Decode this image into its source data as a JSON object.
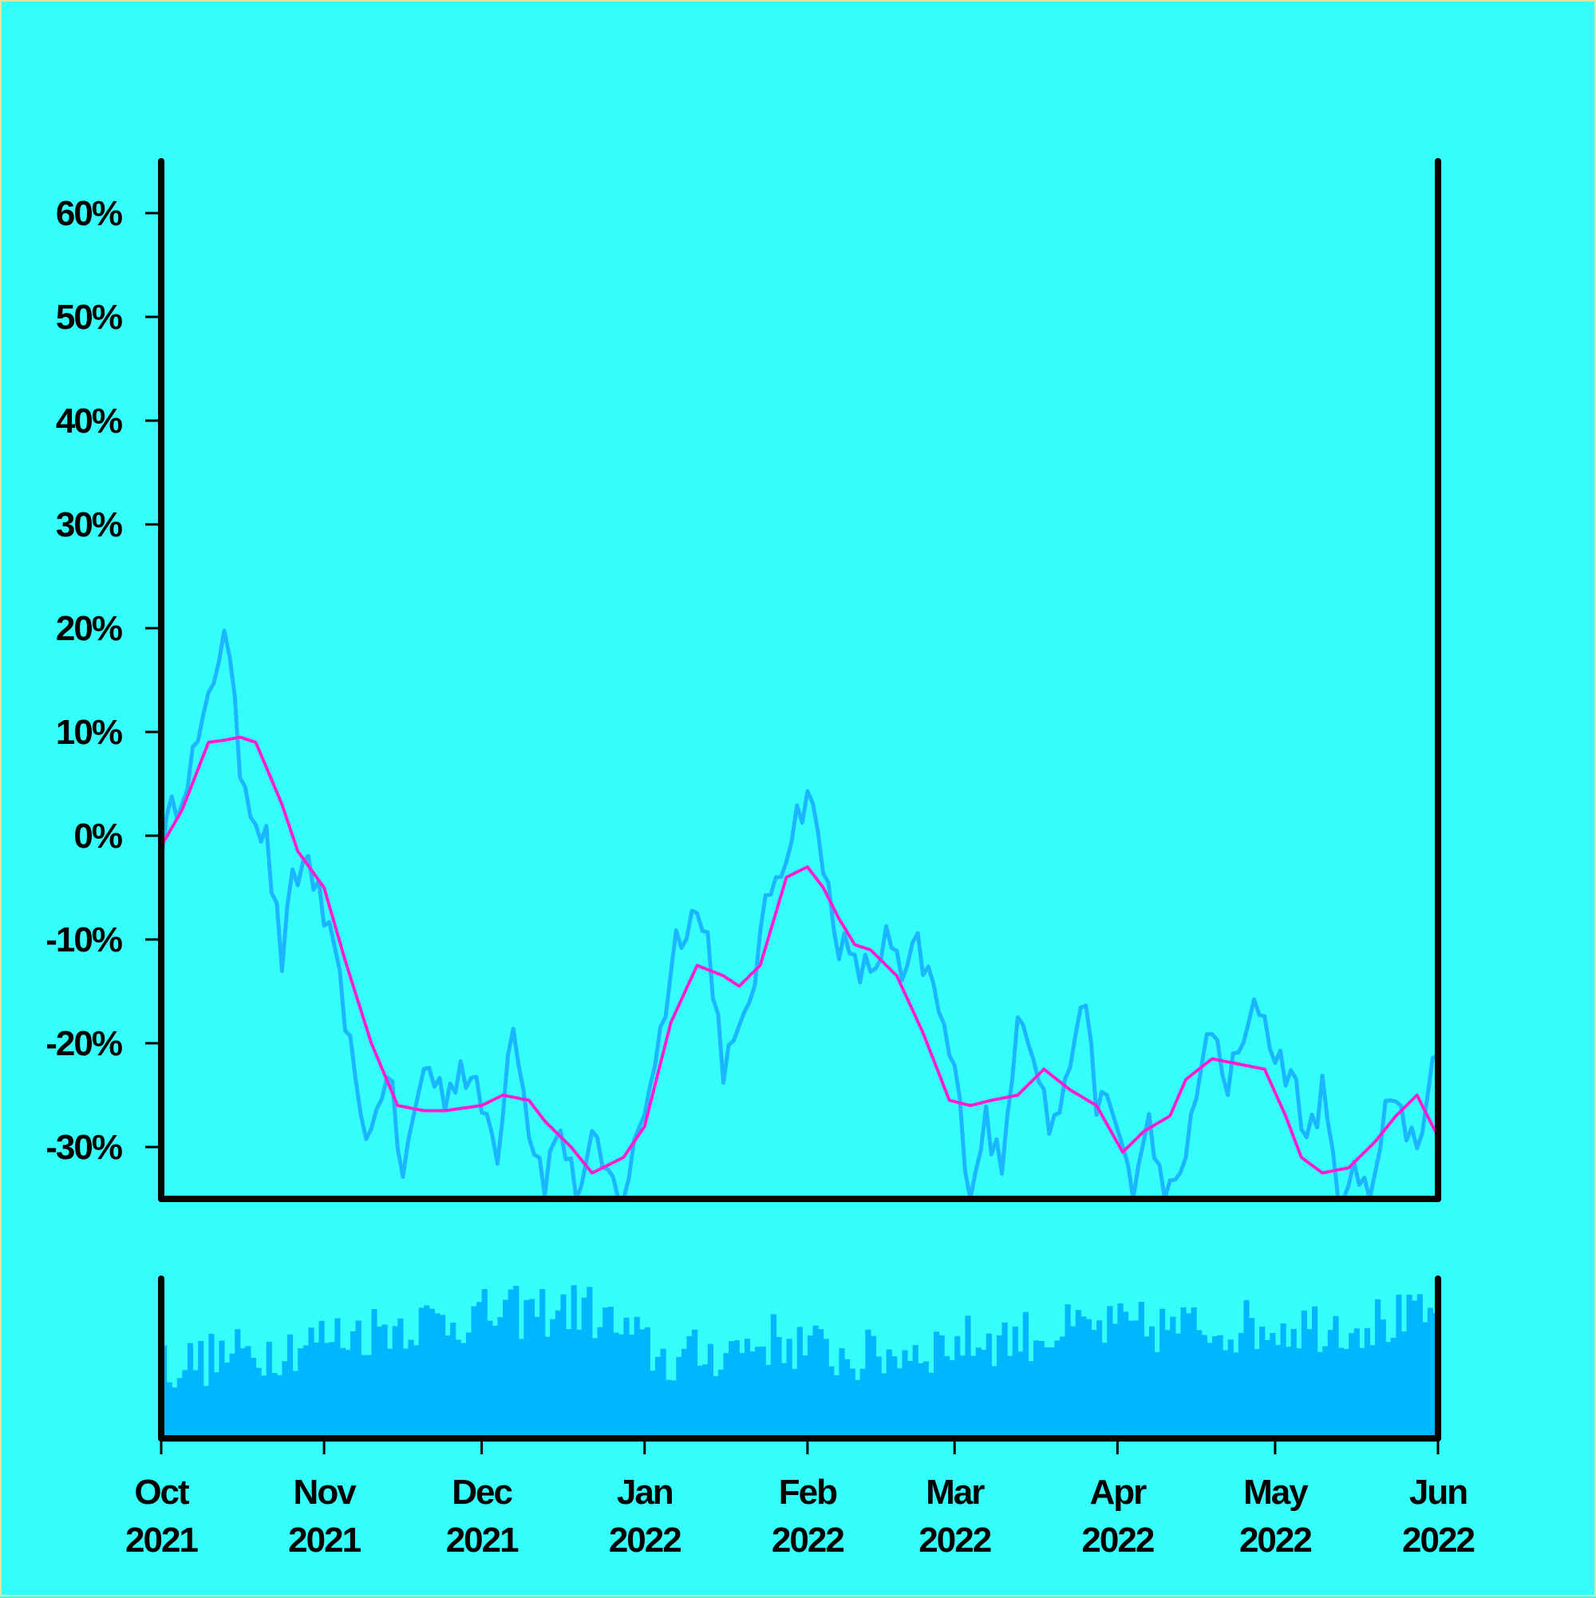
{
  "colors": {
    "background": "#35fffb",
    "price_line": "#1ab6ff",
    "moving_average": "#ff1fd0",
    "volume_bars": "#00b6ff",
    "axes": "#000000"
  },
  "chart_data": [
    {
      "type": "line",
      "title": "",
      "xlabel": "",
      "ylabel": "",
      "x_range": [
        "2021-10-01",
        "2022-06-01"
      ],
      "ylim": [
        -35,
        65
      ],
      "y_unit": "%",
      "y_ticks": [
        -30,
        -20,
        -10,
        0,
        10,
        20,
        30,
        40,
        50,
        60
      ],
      "y_tick_labels": [
        "-30%",
        "-20%",
        "-10%",
        "0%",
        "10%",
        "20%",
        "30%",
        "40%",
        "50%",
        "60%"
      ],
      "grid": false,
      "legend": "none",
      "series": [
        {
          "role": "daily",
          "color": "#1ab6ff",
          "x": [
            "2021-10-01",
            "2021-10-05",
            "2021-10-09",
            "2021-10-13",
            "2021-10-16",
            "2021-10-19",
            "2021-10-21",
            "2021-10-24",
            "2021-10-26",
            "2021-10-29",
            "2021-11-01",
            "2021-11-05",
            "2021-11-07",
            "2021-11-10",
            "2021-11-13",
            "2021-11-16",
            "2021-11-20",
            "2021-11-24",
            "2021-11-27",
            "2021-12-01",
            "2021-12-04",
            "2021-12-07",
            "2021-12-10",
            "2021-12-13",
            "2021-12-16",
            "2021-12-19",
            "2021-12-22",
            "2021-12-25",
            "2021-12-28",
            "2022-01-01",
            "2022-01-04",
            "2022-01-07",
            "2022-01-10",
            "2022-01-13",
            "2022-01-16",
            "2022-01-19",
            "2022-01-22",
            "2022-01-25",
            "2022-01-28",
            "2022-02-01",
            "2022-02-04",
            "2022-02-07",
            "2022-02-10",
            "2022-02-13",
            "2022-02-16",
            "2022-02-19",
            "2022-02-22",
            "2022-02-25",
            "2022-03-01",
            "2022-03-04",
            "2022-03-07",
            "2022-03-10",
            "2022-03-13",
            "2022-03-16",
            "2022-03-19",
            "2022-03-22",
            "2022-03-25",
            "2022-03-28",
            "2022-04-01",
            "2022-04-04",
            "2022-04-07",
            "2022-04-10",
            "2022-04-13",
            "2022-04-16",
            "2022-04-19",
            "2022-04-22",
            "2022-04-25",
            "2022-04-28",
            "2022-05-01",
            "2022-05-04",
            "2022-05-07",
            "2022-05-10",
            "2022-05-13",
            "2022-05-16",
            "2022-05-19",
            "2022-05-22",
            "2022-05-25",
            "2022-05-28",
            "2022-06-01"
          ],
          "values": [
            -1,
            5,
            10,
            20.7,
            7,
            2,
            -0.5,
            -12,
            -5,
            -2,
            -8,
            -17,
            -25,
            -29,
            -22,
            -33,
            -22,
            -25,
            -22,
            -26,
            -30,
            -17,
            -28,
            -33,
            -28,
            -35,
            -30,
            -33,
            -35,
            -26,
            -19,
            -10,
            -7,
            -10,
            -22,
            -20,
            -13,
            -5,
            -1,
            4.5,
            -3,
            -10,
            -13,
            -13,
            -10,
            -14,
            -11,
            -15,
            -23,
            -34,
            -27,
            -33,
            -16,
            -20,
            -28,
            -25,
            -15,
            -25,
            -28,
            -34,
            -28,
            -35,
            -34,
            -24,
            -19,
            -24,
            -20,
            -16,
            -21,
            -23,
            -29,
            -25,
            -35,
            -33,
            -35,
            -25,
            -27,
            -30,
            -19.5
          ]
        },
        {
          "role": "moving-average",
          "color": "#ff1fd0",
          "x": [
            "2021-10-01",
            "2021-10-05",
            "2021-10-10",
            "2021-10-13",
            "2021-10-16",
            "2021-10-19",
            "2021-10-24",
            "2021-10-27",
            "2021-11-01",
            "2021-11-05",
            "2021-11-10",
            "2021-11-15",
            "2021-11-20",
            "2021-11-24",
            "2021-12-01",
            "2021-12-05",
            "2021-12-10",
            "2021-12-13",
            "2021-12-18",
            "2021-12-22",
            "2021-12-28",
            "2022-01-01",
            "2022-01-06",
            "2022-01-11",
            "2022-01-16",
            "2022-01-19",
            "2022-01-23",
            "2022-01-28",
            "2022-02-01",
            "2022-02-04",
            "2022-02-07",
            "2022-02-10",
            "2022-02-13",
            "2022-02-18",
            "2022-02-23",
            "2022-02-28",
            "2022-03-04",
            "2022-03-08",
            "2022-03-13",
            "2022-03-18",
            "2022-03-23",
            "2022-03-28",
            "2022-04-02",
            "2022-04-06",
            "2022-04-11",
            "2022-04-14",
            "2022-04-19",
            "2022-04-24",
            "2022-04-29",
            "2022-05-03",
            "2022-05-06",
            "2022-05-10",
            "2022-05-15",
            "2022-05-20",
            "2022-05-24",
            "2022-05-28",
            "2022-06-01"
          ],
          "values": [
            -1,
            2.5,
            9,
            9.2,
            9.5,
            9,
            3,
            -1.5,
            -5,
            -12,
            -20,
            -26,
            -26.5,
            -26.5,
            -26,
            -25,
            -25.5,
            -27.5,
            -30,
            -32.5,
            -31,
            -28,
            -18,
            -12.5,
            -13.5,
            -14.5,
            -12.5,
            -4,
            -3,
            -5,
            -8,
            -10.5,
            -11,
            -13.5,
            -19,
            -25.5,
            -26,
            -25.5,
            -25,
            -22.5,
            -24.5,
            -26,
            -30.5,
            -28.5,
            -27,
            -23.5,
            -21.5,
            -22,
            -22.5,
            -27,
            -31,
            -32.5,
            -32,
            -29.5,
            -27,
            -25,
            -29
          ]
        }
      ]
    },
    {
      "type": "bar",
      "role": "volume",
      "color": "#00b6ff",
      "title": "",
      "x_range": [
        "2021-10-01",
        "2022-06-01"
      ],
      "x_tick_labels": [
        "Oct 2021",
        "Nov 2021",
        "Dec 2021",
        "Jan 2022",
        "Feb 2022",
        "Mar 2022",
        "Apr 2022",
        "May 2022",
        "Jun 2022"
      ],
      "x_ticks": [
        "2021-10-01",
        "2021-11-01",
        "2021-12-01",
        "2022-01-01",
        "2022-02-01",
        "2022-03-01",
        "2022-04-01",
        "2022-05-01",
        "2022-06-01"
      ],
      "y_tick_labels": [],
      "profile_x": [
        "2021-10-01",
        "2021-10-20",
        "2021-11-15",
        "2021-12-20",
        "2022-01-05",
        "2022-01-25",
        "2022-02-10",
        "2022-03-01",
        "2022-03-25",
        "2022-04-20",
        "2022-05-15",
        "2022-06-01"
      ],
      "profile_values": [
        0.45,
        0.55,
        0.72,
        0.82,
        0.48,
        0.62,
        0.5,
        0.6,
        0.68,
        0.7,
        0.72,
        0.75
      ]
    }
  ]
}
